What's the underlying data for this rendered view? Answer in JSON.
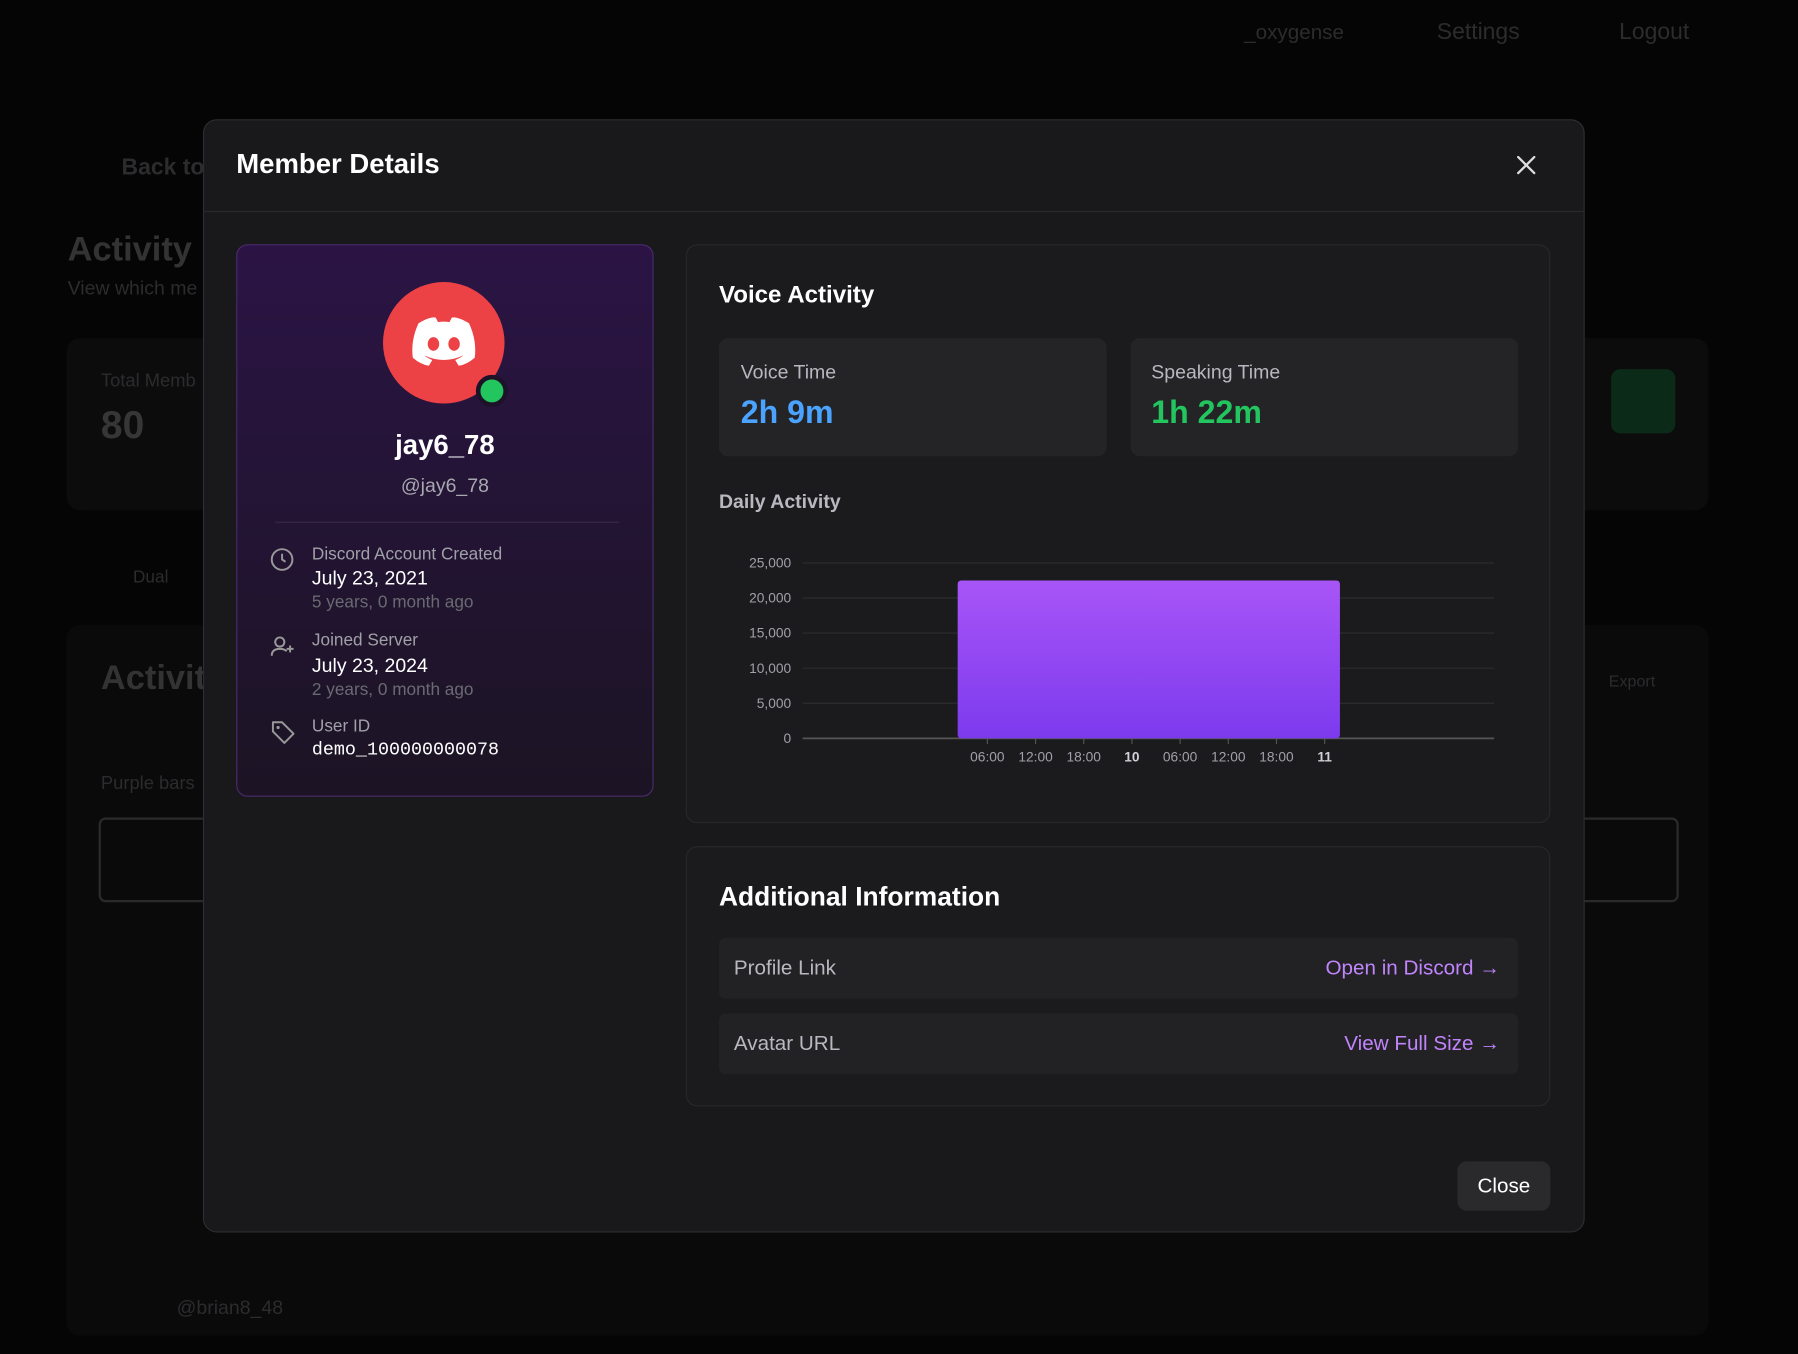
{
  "background": {
    "nav": [
      "_oxygense",
      "Settings",
      "Logout"
    ],
    "back": "Back to",
    "heading": "Activity",
    "subheading": "View which me",
    "stat_label": "Total Memb",
    "stat_value": "80",
    "filter": "Dual",
    "section": "Activit",
    "hint": "Purple bars",
    "export": "Export",
    "member": "@brian8_48"
  },
  "modal": {
    "title": "Member Details",
    "close": "Close",
    "profile": {
      "name": "jay6_78",
      "handle": "@jay6_78",
      "fields": [
        {
          "label": "Discord Account Created",
          "value": "July 23, 2021",
          "note": "5 years, 0 month ago"
        },
        {
          "label": "Joined Server",
          "value": "July 23, 2024",
          "note": "2 years, 0 month ago"
        },
        {
          "label": "User ID",
          "value": "demo_100000000078"
        }
      ]
    },
    "voice_activity": {
      "title": "Voice Activity",
      "stats": [
        {
          "label": "Voice Time",
          "value": "2h 9m"
        },
        {
          "label": "Speaking Time",
          "value": "1h 22m"
        }
      ]
    },
    "daily_activity": {
      "title": "Daily Activity",
      "chart": {
        "type": "histogram",
        "bins": [
          26.3,
          73.9
        ],
        "values": [
          22500
        ],
        "color": "#9b4dff",
        "xlim": [
          7,
          93.1
        ],
        "xticks": [
          {
            "value": 30,
            "label": "06:00"
          },
          {
            "value": 36,
            "label": "12:00"
          },
          {
            "value": 42,
            "label": "18:00"
          },
          {
            "value": 48,
            "label": "10"
          },
          {
            "value": 54,
            "label": "06:00"
          },
          {
            "value": 60,
            "label": "12:00"
          },
          {
            "value": 66,
            "label": "18:00"
          },
          {
            "value": 72,
            "label": "11"
          }
        ],
        "ylim": [
          0,
          25000
        ],
        "yticks": [
          0,
          {
            "value": 5000,
            "label": "5,000"
          },
          {
            "value": 10000,
            "label": "10,000"
          },
          {
            "value": 15000,
            "label": "15,000"
          },
          {
            "value": 20000,
            "label": "20,000"
          },
          {
            "value": 25000,
            "label": "25,000"
          }
        ],
        "grid": true
      }
    },
    "additional": {
      "title": "Additional Information",
      "rows": [
        {
          "label": "Profile Link",
          "link": "Open in Discord →"
        },
        {
          "label": "Avatar URL",
          "link": "View Full Size →"
        }
      ]
    }
  }
}
